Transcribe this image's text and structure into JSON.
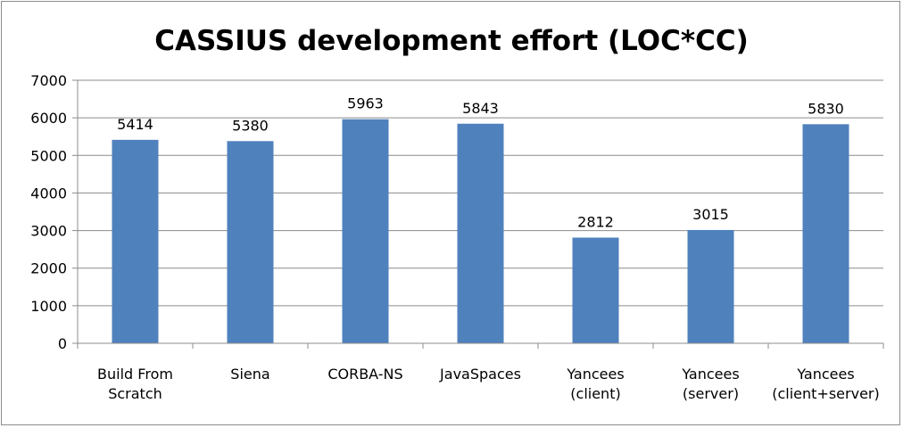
{
  "chart_data": {
    "type": "bar",
    "title": "CASSIUS development effort (LOC*CC)",
    "categories": [
      [
        "Build From",
        "Scratch"
      ],
      [
        "Siena"
      ],
      [
        "CORBA-NS"
      ],
      [
        "JavaSpaces"
      ],
      [
        "Yancees",
        "(client)"
      ],
      [
        "Yancees",
        "(server)"
      ],
      [
        "Yancees",
        "(client+server)"
      ]
    ],
    "values": [
      5414,
      5380,
      5963,
      5843,
      2812,
      3015,
      5830
    ],
    "data_labels": [
      "5414",
      "5380",
      "5963",
      "5843",
      "2812",
      "3015",
      "5830"
    ],
    "ylim": [
      0,
      7000
    ],
    "yticks": [
      0,
      1000,
      2000,
      3000,
      4000,
      5000,
      6000,
      7000
    ],
    "ytick_labels": [
      "0",
      "1000",
      "2000",
      "3000",
      "4000",
      "5000",
      "6000",
      "7000"
    ],
    "xlabel": "",
    "ylabel": "",
    "grid": true,
    "legend": "none",
    "colors": {
      "bar": "#4f81bd",
      "grid": "#8c8c8c",
      "text": "#000000"
    }
  }
}
